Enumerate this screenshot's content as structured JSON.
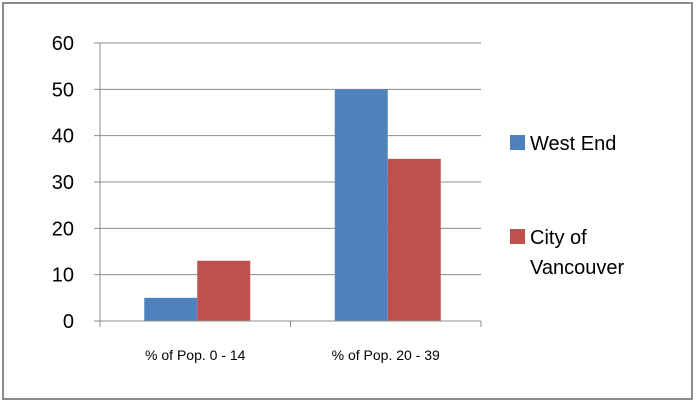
{
  "chart_data": {
    "type": "bar",
    "categories": [
      "% of Pop. 0 - 14",
      "% of Pop. 20 - 39"
    ],
    "series": [
      {
        "name": "West End",
        "values": [
          5,
          50
        ],
        "color": "#4F81BD"
      },
      {
        "name": "City of Vancouver",
        "values": [
          13,
          35
        ],
        "color": "#C0504D"
      }
    ],
    "legend_lines": [
      [
        "West End"
      ],
      [
        "City of",
        "Vancouver"
      ]
    ],
    "ylim": [
      0,
      60
    ],
    "yticks": [
      0,
      10,
      20,
      30,
      40,
      50,
      60
    ],
    "grid": true,
    "legend_position": "right",
    "title": "",
    "xlabel": "",
    "ylabel": ""
  }
}
